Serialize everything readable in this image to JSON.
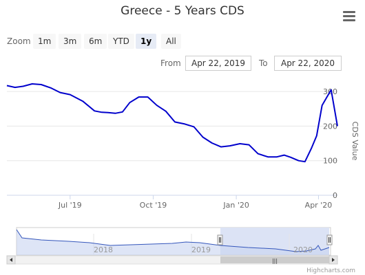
{
  "header": {
    "title": "Greece - 5 Years CDS"
  },
  "zoom": {
    "label": "Zoom",
    "buttons": [
      "1m",
      "3m",
      "6m",
      "YTD",
      "1y",
      "All"
    ],
    "active": "1y"
  },
  "range": {
    "from_label": "From",
    "from_value": "Apr 22, 2019",
    "to_label": "To",
    "to_value": "Apr 22, 2020"
  },
  "credits": "Highcharts.com",
  "navigator": {
    "year_labels": [
      "2018",
      "2019",
      "2020"
    ],
    "handle_glyph": "|||"
  },
  "chart_data": {
    "type": "line",
    "title": "Greece - 5 Years CDS",
    "ylabel": "CDS Value",
    "ylim": [
      0,
      330
    ],
    "yticks": [
      0,
      100,
      200,
      300
    ],
    "xticks": [
      "Jul '19",
      "Oct '19",
      "Jan '20",
      "Apr '20"
    ],
    "x_range": [
      "2019-04-22",
      "2020-04-22"
    ],
    "series_color": "#0000cc",
    "series": [
      {
        "dates": [
          "2019-04-22",
          "2019-05-01",
          "2019-05-10",
          "2019-05-20",
          "2019-05-30",
          "2019-06-10",
          "2019-06-20",
          "2019-07-01",
          "2019-07-15",
          "2019-07-28",
          "2019-08-05",
          "2019-08-12",
          "2019-08-20",
          "2019-08-28",
          "2019-09-05",
          "2019-09-15",
          "2019-09-25",
          "2019-10-05",
          "2019-10-15",
          "2019-10-25",
          "2019-11-05",
          "2019-11-15",
          "2019-11-25",
          "2019-12-05",
          "2019-12-15",
          "2019-12-25",
          "2020-01-05",
          "2020-01-15",
          "2020-01-25",
          "2020-02-05",
          "2020-02-15",
          "2020-02-23",
          "2020-03-01",
          "2020-03-10",
          "2020-03-17",
          "2020-03-24",
          "2020-03-30",
          "2020-04-05",
          "2020-04-15",
          "2020-04-22"
        ],
        "values": [
          317,
          312,
          315,
          322,
          320,
          310,
          297,
          291,
          272,
          244,
          240,
          239,
          237,
          241,
          268,
          284,
          284,
          260,
          243,
          212,
          206,
          198,
          168,
          151,
          140,
          143,
          149,
          146,
          120,
          111,
          111,
          116,
          110,
          100,
          97,
          135,
          172,
          260,
          305,
          200
        ]
      }
    ]
  }
}
